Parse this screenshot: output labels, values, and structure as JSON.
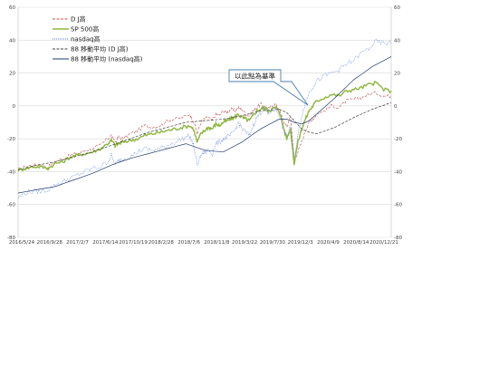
{
  "chart_data": {
    "type": "line",
    "x_tick_labels": [
      "2016/5/24",
      "2016/9/28",
      "2017/2/7",
      "2017/6/14",
      "2017/10/19",
      "2018/2/28",
      "2018/7/6",
      "2018/11/8",
      "2019/3/22",
      "2019/7/30",
      "2019/12/3",
      "2020/4/9",
      "2020/8/14",
      "2020/12/21"
    ],
    "y_ticks_left": [
      "-80",
      "-60",
      "-40",
      "-20",
      "0",
      "20",
      "40",
      "60"
    ],
    "y_ticks_right": [
      "-80",
      "-60",
      "-40",
      "-20",
      "0",
      "20",
      "40",
      "60"
    ],
    "ylim": [
      -80,
      60
    ],
    "grid": "horizontal",
    "legend_placement": "top-left",
    "annotation": "以此點為基準",
    "series": [
      {
        "name": "D J高",
        "color": "#c0504d",
        "dash": "dashed",
        "x": [
          0,
          2,
          4,
          6,
          8,
          10,
          12,
          14,
          16,
          18,
          20,
          22,
          24,
          25,
          26,
          27,
          28,
          30,
          32,
          34,
          36,
          38,
          40,
          42,
          44,
          46,
          47,
          48,
          49,
          50,
          51,
          52,
          53,
          54,
          55,
          56,
          57,
          58,
          59,
          60,
          61,
          62,
          63,
          64,
          65,
          66,
          67,
          68,
          69,
          70,
          71,
          72,
          73,
          74,
          75,
          76,
          77,
          78,
          79,
          80,
          82,
          84,
          86,
          88,
          90,
          92,
          94,
          96,
          98,
          100
        ],
        "values": [
          -39,
          -37,
          -36,
          -36,
          -37,
          -34,
          -32,
          -30,
          -29,
          -27,
          -26,
          -24,
          -20,
          -18,
          -22,
          -19,
          -20,
          -17,
          -15,
          -12,
          -13,
          -12,
          -9,
          -8,
          -7,
          -5,
          -9,
          -17,
          -10,
          -8,
          -7,
          -9,
          -5,
          -6,
          -3,
          -4,
          -2,
          -3,
          -1,
          -2,
          -5,
          -6,
          -3,
          -1,
          1,
          0,
          -2,
          0,
          1,
          -2,
          -9,
          -13,
          -6,
          -33,
          -28,
          -22,
          -15,
          -10,
          -8,
          -5,
          -3,
          0,
          -1,
          3,
          4,
          5,
          7,
          8,
          6,
          6
        ]
      },
      {
        "name": "SP 500高",
        "color": "#8db63c",
        "dash": "solid",
        "x": [
          0,
          2,
          4,
          6,
          8,
          10,
          12,
          14,
          16,
          18,
          20,
          22,
          24,
          25,
          26,
          27,
          28,
          30,
          32,
          34,
          36,
          38,
          40,
          42,
          44,
          46,
          47,
          48,
          49,
          50,
          51,
          52,
          53,
          54,
          55,
          56,
          57,
          58,
          59,
          60,
          61,
          62,
          63,
          64,
          65,
          66,
          67,
          68,
          69,
          70,
          71,
          72,
          73,
          74,
          75,
          76,
          77,
          78,
          79,
          80,
          82,
          84,
          86,
          88,
          90,
          92,
          94,
          96,
          98,
          100
        ],
        "values": [
          -39,
          -38,
          -37,
          -37,
          -38,
          -35,
          -34,
          -31,
          -30,
          -29,
          -28,
          -26,
          -23,
          -21,
          -24,
          -23,
          -22,
          -21,
          -20,
          -18,
          -17,
          -16,
          -15,
          -14,
          -13,
          -12,
          -14,
          -22,
          -17,
          -15,
          -13,
          -14,
          -11,
          -12,
          -10,
          -9,
          -8,
          -7,
          -5,
          -7,
          -8,
          -9,
          -6,
          -3,
          -2,
          -1,
          -3,
          -2,
          -1,
          -3,
          -12,
          -20,
          -14,
          -35,
          -22,
          -14,
          -8,
          -3,
          0,
          3,
          5,
          7,
          6,
          9,
          10,
          11,
          13,
          14,
          10,
          9
        ]
      },
      {
        "name": "nasdaq高",
        "color": "#5b7fd6",
        "dash": "dotted",
        "x": [
          0,
          2,
          4,
          6,
          8,
          10,
          12,
          14,
          16,
          18,
          20,
          22,
          24,
          25,
          26,
          27,
          28,
          30,
          32,
          34,
          36,
          38,
          40,
          42,
          44,
          46,
          47,
          48,
          49,
          50,
          51,
          52,
          53,
          54,
          55,
          56,
          57,
          58,
          59,
          60,
          61,
          62,
          63,
          64,
          65,
          66,
          67,
          68,
          69,
          70,
          71,
          72,
          73,
          74,
          75,
          76,
          77,
          78,
          79,
          80,
          82,
          84,
          86,
          88,
          90,
          92,
          94,
          96,
          98,
          100
        ],
        "values": [
          -56,
          -53,
          -52,
          -52,
          -51,
          -48,
          -46,
          -44,
          -42,
          -40,
          -38,
          -37,
          -34,
          -30,
          -36,
          -33,
          -32,
          -31,
          -28,
          -26,
          -27,
          -26,
          -24,
          -22,
          -20,
          -18,
          -24,
          -36,
          -30,
          -28,
          -27,
          -29,
          -23,
          -22,
          -20,
          -19,
          -18,
          -15,
          -10,
          -14,
          -16,
          -18,
          -12,
          -7,
          -4,
          -2,
          -5,
          -3,
          -2,
          -5,
          -14,
          -19,
          -12,
          -32,
          -18,
          -6,
          2,
          8,
          12,
          15,
          18,
          20,
          22,
          25,
          28,
          32,
          35,
          39,
          38,
          38
        ]
      },
      {
        "name": "88 移動平均 (D J高)",
        "color": "#404040",
        "dash": "dashed",
        "x": [
          0,
          5,
          10,
          15,
          20,
          25,
          30,
          35,
          40,
          45,
          50,
          55,
          60,
          65,
          70,
          72,
          74,
          76,
          78,
          80,
          85,
          90,
          95,
          100
        ],
        "values": [
          -39,
          -36,
          -34,
          -31,
          -28,
          -24,
          -20,
          -16,
          -13,
          -10,
          -9,
          -8,
          -6,
          -3,
          -2,
          -4,
          -9,
          -14,
          -16,
          -17,
          -13,
          -7,
          -2,
          2
        ]
      },
      {
        "name": "88 移動平均 (nasdaq高)",
        "color": "#1f3a70",
        "dash": "solid",
        "x": [
          0,
          5,
          10,
          15,
          20,
          25,
          30,
          35,
          40,
          45,
          50,
          55,
          60,
          65,
          70,
          72,
          74,
          76,
          78,
          80,
          85,
          90,
          95,
          100
        ],
        "values": [
          -53,
          -51,
          -49,
          -45,
          -41,
          -36,
          -32,
          -29,
          -26,
          -23,
          -27,
          -28,
          -22,
          -14,
          -8,
          -8,
          -10,
          -11,
          -9,
          -5,
          5,
          16,
          24,
          30
        ]
      }
    ]
  }
}
